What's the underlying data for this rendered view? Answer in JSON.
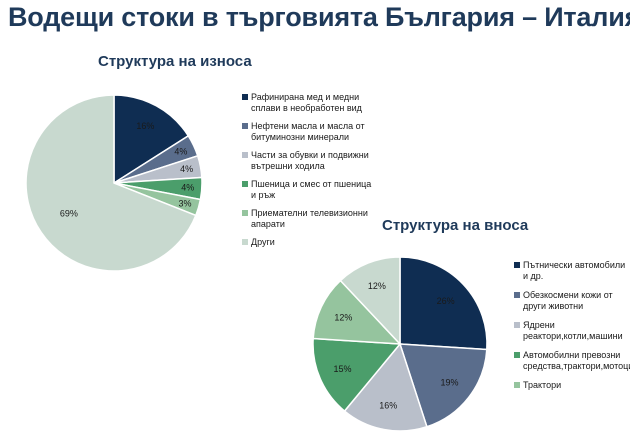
{
  "page": {
    "title": "Водещи стоки в търговията България – Италия"
  },
  "chart_data": [
    {
      "type": "pie",
      "title": "Структура на износа",
      "categories": [
        "Рафинирана мед и медни сплави в необработен вид",
        "Нефтени масла и масла от битуминозни минерали",
        "Части за обувки и подвижни вътрешни ходила",
        "Пшеница и смес от пшеница и ръж",
        "Приемателни телевизионни апарати",
        "Други"
      ],
      "values": [
        16,
        4,
        4,
        4,
        3,
        69
      ],
      "labels": [
        "16%",
        "4%",
        "4%",
        "4%",
        "3%",
        "69%"
      ],
      "colors": [
        "#0f2d52",
        "#5a6d8c",
        "#b9bfca",
        "#4b9e6b",
        "#95c49e",
        "#c8d9cf"
      ],
      "legend": "right"
    },
    {
      "type": "pie",
      "title": "Структура на вноса",
      "categories": [
        "Пътнически автомобили и др.",
        "Обезкосмени кожи от други животни",
        "Ядрени реактори,котли,машини",
        "Автомобилни превозни средства,трактори,мотоциклет",
        "Трактори",
        ""
      ],
      "values": [
        26,
        19,
        16,
        15,
        12,
        12
      ],
      "labels": [
        "26%",
        "19%",
        "16%",
        "15%",
        "12%",
        "12%"
      ],
      "colors": [
        "#0f2d52",
        "#5a6d8c",
        "#b9bfca",
        "#4b9e6b",
        "#95c49e",
        "#c8d9cf"
      ],
      "legend": "right"
    }
  ]
}
